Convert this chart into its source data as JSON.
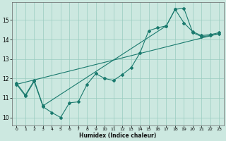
{
  "xlabel": "Humidex (Indice chaleur)",
  "bg_color": "#cce8e0",
  "grid_color": "#99ccc0",
  "line_color": "#1a7a6e",
  "xlim": [
    -0.5,
    23.5
  ],
  "ylim": [
    9.6,
    15.9
  ],
  "xticks": [
    0,
    1,
    2,
    3,
    4,
    5,
    6,
    7,
    8,
    9,
    10,
    11,
    12,
    13,
    14,
    15,
    16,
    17,
    18,
    19,
    20,
    21,
    22,
    23
  ],
  "yticks": [
    10,
    11,
    12,
    13,
    14,
    15
  ],
  "line1_x": [
    0,
    1,
    2,
    3,
    4,
    5,
    6,
    7,
    8,
    9,
    10,
    11,
    12,
    13,
    14,
    15,
    16,
    17,
    18,
    19,
    20,
    21,
    22,
    23
  ],
  "line1_y": [
    11.7,
    11.1,
    11.85,
    10.55,
    10.25,
    10.0,
    10.75,
    10.8,
    11.7,
    12.25,
    12.0,
    11.9,
    12.2,
    12.55,
    13.3,
    14.45,
    14.6,
    14.7,
    15.55,
    15.6,
    14.35,
    14.15,
    14.2,
    14.3
  ],
  "line2_x": [
    0,
    1,
    2,
    3,
    17,
    18,
    19,
    20,
    21,
    22,
    23
  ],
  "line2_y": [
    11.75,
    11.15,
    11.9,
    10.6,
    14.7,
    15.55,
    14.85,
    14.4,
    14.2,
    14.25,
    14.35
  ],
  "line3_x": [
    0,
    23
  ],
  "line3_y": [
    11.7,
    14.3
  ]
}
